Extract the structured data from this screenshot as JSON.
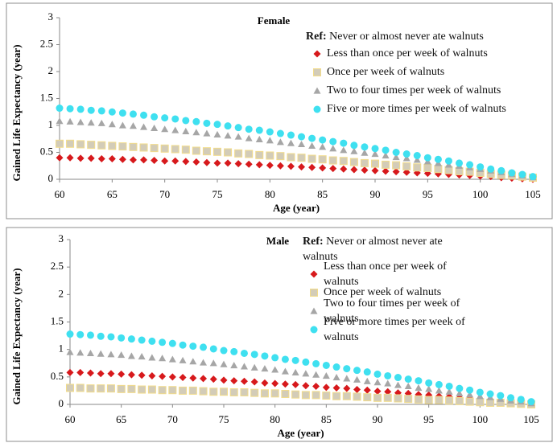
{
  "chart_data": [
    {
      "type": "scatter",
      "title": "Female",
      "x_label": "Age (year)",
      "y_label": "Gained Life Expectancy (year)",
      "legend_ref_label": "Ref:",
      "legend_ref_text": "Never or almost never ate walnuts",
      "x": [
        60,
        61,
        62,
        63,
        64,
        65,
        66,
        67,
        68,
        69,
        70,
        71,
        72,
        73,
        74,
        75,
        76,
        77,
        78,
        79,
        80,
        81,
        82,
        83,
        84,
        85,
        86,
        87,
        88,
        89,
        90,
        91,
        92,
        93,
        94,
        95,
        96,
        97,
        98,
        99,
        100,
        101,
        102,
        103,
        104,
        105
      ],
      "xlim": [
        60,
        105
      ],
      "xticks": [
        60,
        65,
        70,
        75,
        80,
        85,
        90,
        95,
        100,
        105
      ],
      "ylim": [
        0,
        3
      ],
      "yticks": [
        0,
        0.5,
        1,
        1.5,
        2,
        2.5,
        3
      ],
      "series": [
        {
          "name": "Less than once per week of walnuts",
          "color": "#d7191c",
          "marker": "diamond",
          "values": [
            0.4,
            0.4,
            0.39,
            0.39,
            0.38,
            0.38,
            0.37,
            0.36,
            0.36,
            0.35,
            0.34,
            0.34,
            0.33,
            0.32,
            0.31,
            0.3,
            0.3,
            0.29,
            0.28,
            0.27,
            0.26,
            0.25,
            0.24,
            0.23,
            0.22,
            0.21,
            0.2,
            0.19,
            0.18,
            0.17,
            0.16,
            0.15,
            0.14,
            0.13,
            0.12,
            0.11,
            0.1,
            0.09,
            0.08,
            0.07,
            0.06,
            0.05,
            0.03,
            0.02,
            0.01,
            0
          ]
        },
        {
          "name": "Once per week of walnuts",
          "color": "#d3ccb8",
          "marker": "square",
          "values": [
            0.66,
            0.66,
            0.65,
            0.64,
            0.63,
            0.62,
            0.61,
            0.6,
            0.59,
            0.58,
            0.57,
            0.56,
            0.55,
            0.53,
            0.52,
            0.51,
            0.5,
            0.48,
            0.47,
            0.45,
            0.44,
            0.43,
            0.41,
            0.4,
            0.38,
            0.37,
            0.35,
            0.34,
            0.32,
            0.3,
            0.29,
            0.27,
            0.26,
            0.24,
            0.22,
            0.21,
            0.19,
            0.17,
            0.15,
            0.14,
            0.12,
            0.1,
            0.08,
            0.07,
            0.05,
            0.03
          ]
        },
        {
          "name": "Two to four times per week of walnuts",
          "color": "#a6a6a6",
          "marker": "triangle",
          "values": [
            1.08,
            1.07,
            1.06,
            1.05,
            1.04,
            1.02,
            1.0,
            0.99,
            0.97,
            0.95,
            0.93,
            0.91,
            0.89,
            0.87,
            0.85,
            0.83,
            0.81,
            0.79,
            0.76,
            0.74,
            0.72,
            0.69,
            0.67,
            0.65,
            0.62,
            0.6,
            0.57,
            0.54,
            0.52,
            0.49,
            0.47,
            0.44,
            0.41,
            0.39,
            0.36,
            0.33,
            0.3,
            0.27,
            0.25,
            0.22,
            0.19,
            0.16,
            0.13,
            0.1,
            0.07,
            0.04
          ]
        },
        {
          "name": "Five or more times per week of walnuts",
          "color": "#3fe0f0",
          "marker": "circle",
          "values": [
            1.32,
            1.31,
            1.3,
            1.28,
            1.27,
            1.25,
            1.23,
            1.21,
            1.19,
            1.16,
            1.14,
            1.12,
            1.09,
            1.07,
            1.04,
            1.02,
            0.99,
            0.96,
            0.93,
            0.91,
            0.88,
            0.85,
            0.82,
            0.79,
            0.76,
            0.73,
            0.7,
            0.67,
            0.63,
            0.6,
            0.57,
            0.54,
            0.5,
            0.47,
            0.44,
            0.4,
            0.37,
            0.34,
            0.3,
            0.27,
            0.23,
            0.19,
            0.16,
            0.12,
            0.09,
            0.05
          ]
        }
      ]
    },
    {
      "type": "scatter",
      "title": "Male",
      "x_label": "Age (year)",
      "y_label": "Gained Life Expectancy (year)",
      "legend_ref_label": "Ref:",
      "legend_ref_text": "Never or almost never ate walnuts",
      "x": [
        60,
        61,
        62,
        63,
        64,
        65,
        66,
        67,
        68,
        69,
        70,
        71,
        72,
        73,
        74,
        75,
        76,
        77,
        78,
        79,
        80,
        81,
        82,
        83,
        84,
        85,
        86,
        87,
        88,
        89,
        90,
        91,
        92,
        93,
        94,
        95,
        96,
        97,
        98,
        99,
        100,
        101,
        102,
        103,
        104,
        105
      ],
      "xlim": [
        60,
        105
      ],
      "xticks": [
        60,
        65,
        70,
        75,
        80,
        85,
        90,
        95,
        100,
        105
      ],
      "ylim": [
        0,
        3
      ],
      "yticks": [
        0,
        0.5,
        1,
        1.5,
        2,
        2.5,
        3
      ],
      "series": [
        {
          "name": "Less than once per week of walnuts",
          "color": "#d7191c",
          "marker": "diamond",
          "values": [
            0.58,
            0.58,
            0.57,
            0.56,
            0.56,
            0.55,
            0.54,
            0.53,
            0.52,
            0.51,
            0.5,
            0.49,
            0.48,
            0.47,
            0.46,
            0.44,
            0.43,
            0.42,
            0.41,
            0.39,
            0.38,
            0.37,
            0.36,
            0.34,
            0.33,
            0.31,
            0.3,
            0.29,
            0.27,
            0.26,
            0.24,
            0.23,
            0.21,
            0.2,
            0.18,
            0.17,
            0.15,
            0.14,
            0.12,
            0.11,
            0.09,
            0.08,
            0.06,
            0.04,
            0.03,
            0.01
          ]
        },
        {
          "name": "Once per week of walnuts",
          "color": "#d3ccb8",
          "marker": "square",
          "values": [
            0.3,
            0.3,
            0.29,
            0.29,
            0.29,
            0.28,
            0.28,
            0.27,
            0.27,
            0.26,
            0.26,
            0.25,
            0.25,
            0.24,
            0.23,
            0.23,
            0.22,
            0.22,
            0.21,
            0.2,
            0.2,
            0.19,
            0.18,
            0.17,
            0.17,
            0.16,
            0.15,
            0.15,
            0.14,
            0.13,
            0.12,
            0.12,
            0.11,
            0.1,
            0.09,
            0.08,
            0.08,
            0.07,
            0.06,
            0.05,
            0.04,
            0.03,
            0.03,
            0.02,
            0.01,
            0
          ]
        },
        {
          "name": "Two to four times per week of walnuts",
          "color": "#a6a6a6",
          "marker": "triangle",
          "values": [
            0.95,
            0.94,
            0.93,
            0.92,
            0.91,
            0.9,
            0.88,
            0.87,
            0.85,
            0.84,
            0.82,
            0.8,
            0.78,
            0.76,
            0.75,
            0.73,
            0.71,
            0.69,
            0.67,
            0.65,
            0.63,
            0.6,
            0.58,
            0.56,
            0.54,
            0.52,
            0.49,
            0.47,
            0.45,
            0.42,
            0.4,
            0.38,
            0.35,
            0.33,
            0.3,
            0.28,
            0.25,
            0.23,
            0.2,
            0.18,
            0.15,
            0.13,
            0.1,
            0.07,
            0.05,
            0.02
          ]
        },
        {
          "name": "Five or more times per week of walnuts",
          "color": "#3fe0f0",
          "marker": "circle",
          "values": [
            1.28,
            1.27,
            1.26,
            1.24,
            1.23,
            1.21,
            1.19,
            1.17,
            1.15,
            1.13,
            1.11,
            1.08,
            1.06,
            1.04,
            1.01,
            0.98,
            0.96,
            0.93,
            0.91,
            0.88,
            0.85,
            0.82,
            0.8,
            0.77,
            0.74,
            0.71,
            0.68,
            0.65,
            0.62,
            0.59,
            0.55,
            0.52,
            0.49,
            0.46,
            0.43,
            0.39,
            0.36,
            0.33,
            0.29,
            0.26,
            0.22,
            0.19,
            0.16,
            0.12,
            0.09,
            0.05
          ]
        }
      ]
    }
  ]
}
